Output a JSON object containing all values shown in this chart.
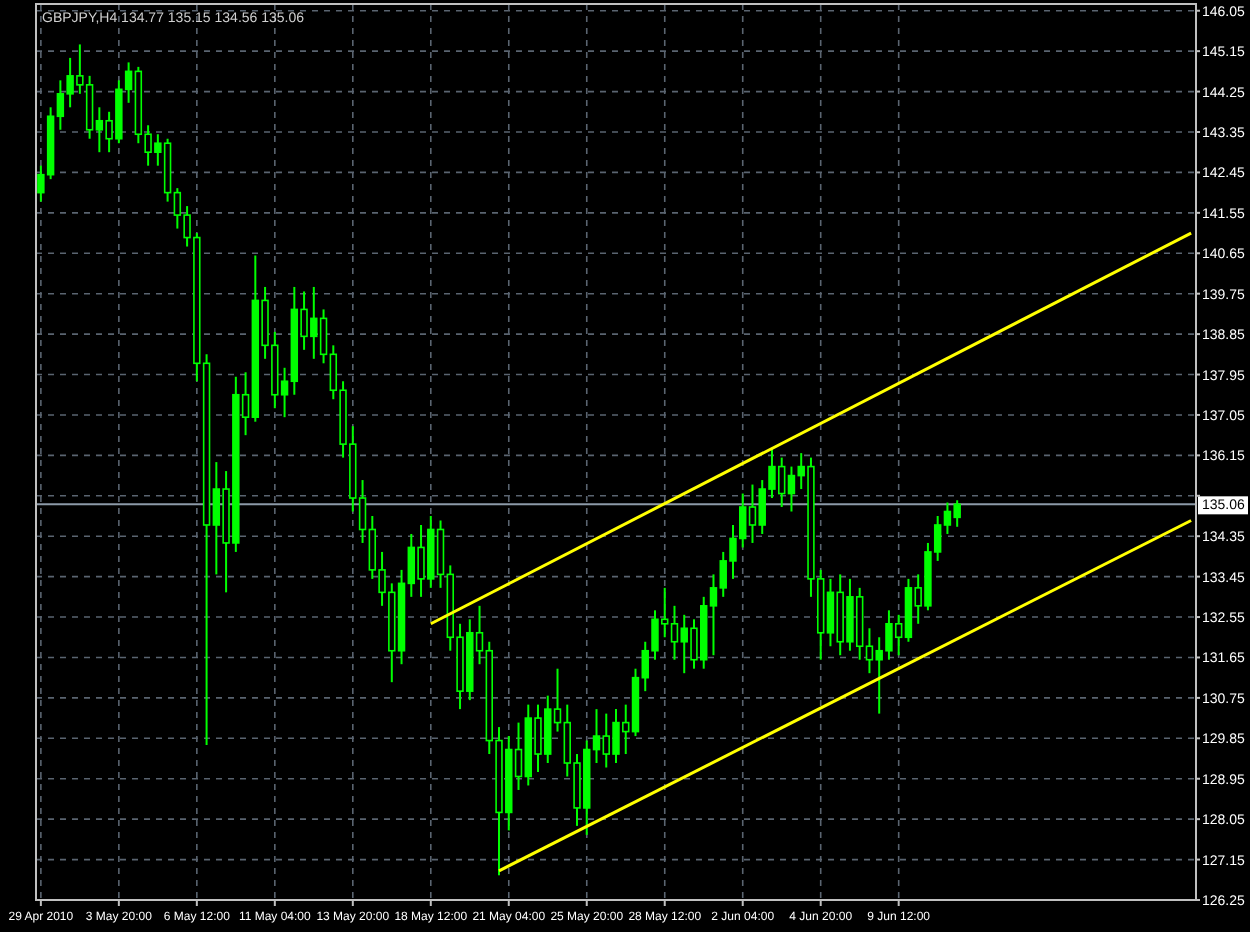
{
  "chart_data": {
    "type": "candlestick",
    "title": "GBPJPY,H4  134.77 135.15 134.56 135.06",
    "categories": [
      "29 Apr 2010",
      null,
      null,
      null,
      null,
      null,
      null,
      null,
      "3 May 20:00",
      null,
      null,
      null,
      null,
      null,
      null,
      null,
      "6 May 12:00",
      null,
      null,
      null,
      null,
      null,
      null,
      null,
      "11 May 04:00",
      null,
      null,
      null,
      null,
      null,
      null,
      null,
      "13 May 20:00",
      null,
      null,
      null,
      null,
      null,
      null,
      null,
      "18 May 12:00",
      null,
      null,
      null,
      null,
      null,
      null,
      null,
      "21 May 04:00",
      null,
      null,
      null,
      null,
      null,
      null,
      null,
      "25 May 20:00",
      null,
      null,
      null,
      null,
      null,
      null,
      null,
      "28 May 12:00",
      null,
      null,
      null,
      null,
      null,
      null,
      null,
      "2 Jun 04:00",
      null,
      null,
      null,
      null,
      null,
      null,
      null,
      "4 Jun 20:00",
      null,
      null,
      null,
      null,
      null,
      null,
      null,
      "9 Jun 12:00",
      null,
      null,
      null,
      null,
      null,
      null,
      null,
      null,
      null,
      null,
      null,
      null,
      null,
      null,
      null,
      null,
      null,
      null,
      null,
      null,
      null,
      null,
      null,
      null,
      null,
      null,
      null,
      null,
      null,
      null
    ],
    "ohlc": [
      [
        142.0,
        142.6,
        141.8,
        142.4
      ],
      [
        142.4,
        143.9,
        142.3,
        143.7
      ],
      [
        143.7,
        144.5,
        143.4,
        144.2
      ],
      [
        144.2,
        145.0,
        143.9,
        144.6
      ],
      [
        144.6,
        145.3,
        144.2,
        144.4
      ],
      [
        144.4,
        144.6,
        143.2,
        143.4
      ],
      [
        143.4,
        143.9,
        142.9,
        143.6
      ],
      [
        143.6,
        143.8,
        142.9,
        143.2
      ],
      [
        143.2,
        144.5,
        143.1,
        144.3
      ],
      [
        144.3,
        144.9,
        144.0,
        144.7
      ],
      [
        144.7,
        144.8,
        143.1,
        143.3
      ],
      [
        143.3,
        143.5,
        142.6,
        142.9
      ],
      [
        142.9,
        143.3,
        142.6,
        143.1
      ],
      [
        143.1,
        143.2,
        141.8,
        142.0
      ],
      [
        142.0,
        142.1,
        141.2,
        141.5
      ],
      [
        141.5,
        141.7,
        140.8,
        141.0
      ],
      [
        141.0,
        141.1,
        137.8,
        138.2
      ],
      [
        138.2,
        138.4,
        129.7,
        134.6
      ],
      [
        134.6,
        136.0,
        133.5,
        135.4
      ],
      [
        135.4,
        135.8,
        133.1,
        134.2
      ],
      [
        134.2,
        137.9,
        134.0,
        137.5
      ],
      [
        137.5,
        138.0,
        136.6,
        137.0
      ],
      [
        137.0,
        140.6,
        136.9,
        139.6
      ],
      [
        139.6,
        139.9,
        138.3,
        138.6
      ],
      [
        138.6,
        138.9,
        137.2,
        137.5
      ],
      [
        137.5,
        138.1,
        137.0,
        137.8
      ],
      [
        137.8,
        139.9,
        137.5,
        139.4
      ],
      [
        139.4,
        139.8,
        138.5,
        138.8
      ],
      [
        138.8,
        139.9,
        138.3,
        139.2
      ],
      [
        139.2,
        139.4,
        138.2,
        138.4
      ],
      [
        138.4,
        138.6,
        137.4,
        137.6
      ],
      [
        137.6,
        137.8,
        136.1,
        136.4
      ],
      [
        136.4,
        136.8,
        134.9,
        135.2
      ],
      [
        135.2,
        135.6,
        134.2,
        134.5
      ],
      [
        134.5,
        134.8,
        133.4,
        133.6
      ],
      [
        133.6,
        134.0,
        132.8,
        133.1
      ],
      [
        133.1,
        133.3,
        131.1,
        131.8
      ],
      [
        131.8,
        133.6,
        131.5,
        133.3
      ],
      [
        133.3,
        134.4,
        133.0,
        134.1
      ],
      [
        134.1,
        134.6,
        133.0,
        133.4
      ],
      [
        133.4,
        134.8,
        133.2,
        134.5
      ],
      [
        134.5,
        134.7,
        133.2,
        133.5
      ],
      [
        133.5,
        133.7,
        131.8,
        132.1
      ],
      [
        132.1,
        132.4,
        130.5,
        130.9
      ],
      [
        130.9,
        132.5,
        130.7,
        132.2
      ],
      [
        132.2,
        132.8,
        131.5,
        131.8
      ],
      [
        131.8,
        132.0,
        129.5,
        129.8
      ],
      [
        129.8,
        130.1,
        126.8,
        128.2
      ],
      [
        128.2,
        129.9,
        127.8,
        129.6
      ],
      [
        129.6,
        130.2,
        128.7,
        129.0
      ],
      [
        129.0,
        130.6,
        128.8,
        130.3
      ],
      [
        130.3,
        130.6,
        129.1,
        129.5
      ],
      [
        129.5,
        130.8,
        129.3,
        130.5
      ],
      [
        130.5,
        131.4,
        130.0,
        130.2
      ],
      [
        130.2,
        130.6,
        129.0,
        129.3
      ],
      [
        129.3,
        129.5,
        127.9,
        128.3
      ],
      [
        128.3,
        129.8,
        127.7,
        129.6
      ],
      [
        129.6,
        130.5,
        129.3,
        129.9
      ],
      [
        129.9,
        130.4,
        129.2,
        129.5
      ],
      [
        129.5,
        130.5,
        129.3,
        130.2
      ],
      [
        130.2,
        130.6,
        129.5,
        130.0
      ],
      [
        130.0,
        131.4,
        129.9,
        131.2
      ],
      [
        131.2,
        132.0,
        130.9,
        131.8
      ],
      [
        131.8,
        132.7,
        131.6,
        132.5
      ],
      [
        132.5,
        133.2,
        132.1,
        132.4
      ],
      [
        132.4,
        132.8,
        131.6,
        132.0
      ],
      [
        132.0,
        132.6,
        131.3,
        132.3
      ],
      [
        132.3,
        132.5,
        131.4,
        131.6
      ],
      [
        131.6,
        133.0,
        131.4,
        132.8
      ],
      [
        132.8,
        133.5,
        131.7,
        133.2
      ],
      [
        133.2,
        134.0,
        133.0,
        133.8
      ],
      [
        133.8,
        134.6,
        133.4,
        134.3
      ],
      [
        134.3,
        135.3,
        134.1,
        135.0
      ],
      [
        135.0,
        135.5,
        134.2,
        134.6
      ],
      [
        134.6,
        135.6,
        134.4,
        135.4
      ],
      [
        135.4,
        136.3,
        135.2,
        135.9
      ],
      [
        135.9,
        136.1,
        135.0,
        135.3
      ],
      [
        135.3,
        135.9,
        134.9,
        135.7
      ],
      [
        135.7,
        136.2,
        135.4,
        135.9
      ],
      [
        135.9,
        136.1,
        133.0,
        133.4
      ],
      [
        133.4,
        133.6,
        131.6,
        132.2
      ],
      [
        132.2,
        133.4,
        131.9,
        133.1
      ],
      [
        133.1,
        133.5,
        131.7,
        132.0
      ],
      [
        132.0,
        133.4,
        131.8,
        133.0
      ],
      [
        133.0,
        133.2,
        131.6,
        131.9
      ],
      [
        131.9,
        132.3,
        131.3,
        131.6
      ],
      [
        131.6,
        132.1,
        130.4,
        131.8
      ],
      [
        131.8,
        132.7,
        131.6,
        132.4
      ],
      [
        132.4,
        132.6,
        131.7,
        132.1
      ],
      [
        132.1,
        133.4,
        132.0,
        133.2
      ],
      [
        133.2,
        133.5,
        132.4,
        132.8
      ],
      [
        132.8,
        134.2,
        132.7,
        134.0
      ],
      [
        134.0,
        134.8,
        133.8,
        134.6
      ],
      [
        134.6,
        135.1,
        134.4,
        134.9
      ],
      [
        134.77,
        135.15,
        134.56,
        135.06
      ],
      null,
      null,
      null,
      null,
      null,
      null,
      null,
      null,
      null,
      null,
      null,
      null,
      null,
      null,
      null,
      null,
      null,
      null,
      null,
      null,
      null,
      null,
      null,
      null
    ],
    "color": "#00ff00",
    "series": [
      {
        "type": "line",
        "color": "#ffff00",
        "values": [
          null,
          null,
          null,
          null,
          null,
          null,
          null,
          null,
          null,
          null,
          null,
          null,
          null,
          null,
          null,
          null,
          null,
          null,
          null,
          null,
          null,
          null,
          null,
          null,
          null,
          null,
          null,
          null,
          null,
          null,
          null,
          null,
          null,
          null,
          null,
          null,
          null,
          null,
          null,
          null,
          132.4,
          null,
          null,
          null,
          null,
          null,
          null,
          null,
          null,
          null,
          null,
          null,
          null,
          null,
          null,
          null,
          null,
          null,
          null,
          null,
          null,
          null,
          null,
          null,
          null,
          null,
          null,
          null,
          null,
          null,
          null,
          null,
          null,
          null,
          null,
          null,
          null,
          null,
          null,
          null,
          null,
          null,
          null,
          null,
          null,
          null,
          null,
          null,
          null,
          null,
          null,
          null,
          null,
          null,
          null,
          null,
          null,
          null,
          null,
          null,
          null,
          null,
          null,
          null,
          null,
          null,
          null,
          null,
          null,
          null,
          null,
          null,
          null,
          null,
          null,
          null,
          null,
          null,
          141.1
        ]
      },
      {
        "type": "line",
        "color": "#ffff00",
        "values": [
          null,
          null,
          null,
          null,
          null,
          null,
          null,
          null,
          null,
          null,
          null,
          null,
          null,
          null,
          null,
          null,
          null,
          null,
          null,
          null,
          null,
          null,
          null,
          null,
          null,
          null,
          null,
          null,
          null,
          null,
          null,
          null,
          null,
          null,
          null,
          null,
          null,
          null,
          null,
          null,
          null,
          null,
          null,
          null,
          null,
          null,
          null,
          126.9,
          null,
          null,
          null,
          null,
          null,
          null,
          null,
          null,
          null,
          null,
          null,
          null,
          null,
          null,
          null,
          null,
          null,
          null,
          null,
          null,
          null,
          null,
          null,
          null,
          null,
          null,
          null,
          null,
          null,
          null,
          null,
          null,
          null,
          null,
          null,
          null,
          null,
          null,
          null,
          null,
          null,
          null,
          null,
          null,
          null,
          null,
          null,
          null,
          null,
          null,
          null,
          null,
          null,
          null,
          null,
          null,
          null,
          null,
          null,
          null,
          null,
          null,
          null,
          null,
          null,
          null,
          null,
          null,
          null,
          null,
          134.7
        ]
      }
    ],
    "ylim": [
      126.25,
      146.2
    ],
    "yticks": [
      126.25,
      127.15,
      128.05,
      128.95,
      129.85,
      130.75,
      131.65,
      132.55,
      133.45,
      134.35,
      {
        "value": 135.25,
        "label": null
      },
      136.15,
      137.05,
      137.95,
      138.85,
      139.75,
      140.65,
      141.55,
      142.45,
      143.35,
      144.25,
      145.15,
      146.05
    ],
    "ref_lines": [
      {
        "axis": "y",
        "value": 135.06,
        "label": "135.06",
        "color": "#8c9aa8"
      }
    ],
    "grid": true
  }
}
